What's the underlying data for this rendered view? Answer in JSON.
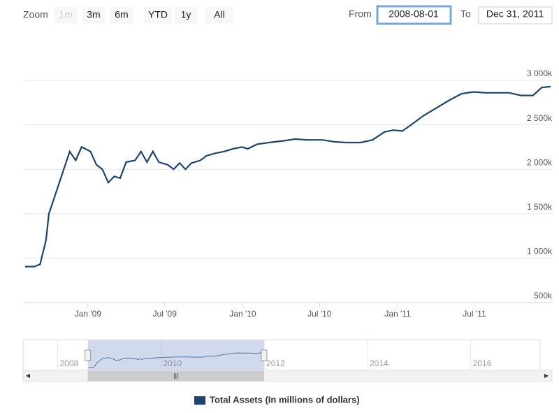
{
  "chart_data": {
    "type": "line",
    "range_selector": {
      "zoom_label": "Zoom",
      "buttons": [
        "1m",
        "3m",
        "6m",
        "YTD",
        "1y",
        "All"
      ],
      "disabled_button": "1m",
      "from_label": "From",
      "from_value": "2008-08-01",
      "to_label": "To",
      "to_value": "Dec 31, 2011"
    },
    "x": [
      "2008-08-06",
      "2008-08-27",
      "2008-09-10",
      "2008-09-24",
      "2008-10-01",
      "2008-10-08",
      "2008-10-22",
      "2008-11-05",
      "2008-11-19",
      "2008-12-03",
      "2008-12-17",
      "2009-01-07",
      "2009-01-21",
      "2009-02-04",
      "2009-02-18",
      "2009-03-04",
      "2009-03-18",
      "2009-04-01",
      "2009-04-22",
      "2009-05-06",
      "2009-05-20",
      "2009-06-03",
      "2009-06-17",
      "2009-07-08",
      "2009-07-22",
      "2009-08-05",
      "2009-08-19",
      "2009-09-02",
      "2009-09-23",
      "2009-10-07",
      "2009-10-28",
      "2009-11-18",
      "2009-12-09",
      "2009-12-30",
      "2010-01-13",
      "2010-02-03",
      "2010-03-03",
      "2010-04-07",
      "2010-05-05",
      "2010-06-02",
      "2010-07-07",
      "2010-08-04",
      "2010-09-01",
      "2010-10-06",
      "2010-11-03",
      "2010-12-01",
      "2010-12-22",
      "2011-01-12",
      "2011-02-02",
      "2011-03-02",
      "2011-04-06",
      "2011-05-04",
      "2011-06-01",
      "2011-06-29",
      "2011-07-27",
      "2011-08-24",
      "2011-09-21",
      "2011-10-19",
      "2011-11-16",
      "2011-12-07",
      "2011-12-28"
    ],
    "series": [
      {
        "name": "Total Assets (In millions of dollars)",
        "color": "#1b4470",
        "values": [
          905000,
          905000,
          930000,
          1200000,
          1500000,
          1600000,
          1800000,
          2000000,
          2200000,
          2100000,
          2250000,
          2200000,
          2050000,
          2000000,
          1850000,
          1920000,
          1900000,
          2080000,
          2100000,
          2200000,
          2080000,
          2200000,
          2080000,
          2050000,
          2000000,
          2070000,
          2000000,
          2070000,
          2100000,
          2150000,
          2180000,
          2200000,
          2230000,
          2250000,
          2230000,
          2280000,
          2300000,
          2320000,
          2340000,
          2330000,
          2330000,
          2310000,
          2300000,
          2300000,
          2330000,
          2420000,
          2440000,
          2430000,
          2500000,
          2600000,
          2700000,
          2780000,
          2850000,
          2870000,
          2860000,
          2860000,
          2860000,
          2830000,
          2830000,
          2920000,
          2930000
        ]
      }
    ],
    "xlim": [
      "2008-08-01",
      "2011-12-31"
    ],
    "xticks": [
      {
        "value": "2009-01-01",
        "label": "Jan '09"
      },
      {
        "value": "2009-07-01",
        "label": "Jul '09"
      },
      {
        "value": "2010-01-01",
        "label": "Jan '10"
      },
      {
        "value": "2010-07-01",
        "label": "Jul '10"
      },
      {
        "value": "2011-01-01",
        "label": "Jan '11"
      },
      {
        "value": "2011-07-01",
        "label": "Jul '11"
      }
    ],
    "ylim": [
      500000,
      3000000
    ],
    "yticks": [
      {
        "value": 500000,
        "label": "500k"
      },
      {
        "value": 1000000,
        "label": "1 000k"
      },
      {
        "value": 1500000,
        "label": "1 500k"
      },
      {
        "value": 2000000,
        "label": "2 000k"
      },
      {
        "value": 2500000,
        "label": "2 500k"
      },
      {
        "value": 3000000,
        "label": "3 000k"
      }
    ],
    "grid": true,
    "navigator": {
      "xlim": [
        "2007-05-01",
        "2017-05-06"
      ],
      "ylim": [
        500000,
        4600000
      ],
      "xticks": [
        {
          "value": "2008-01-01",
          "label": "2008"
        },
        {
          "value": "2010-01-01",
          "label": "2010"
        },
        {
          "value": "2012-01-01",
          "label": "2012"
        },
        {
          "value": "2014-01-01",
          "label": "2014"
        },
        {
          "value": "2016-01-01",
          "label": "2016"
        }
      ]
    }
  }
}
